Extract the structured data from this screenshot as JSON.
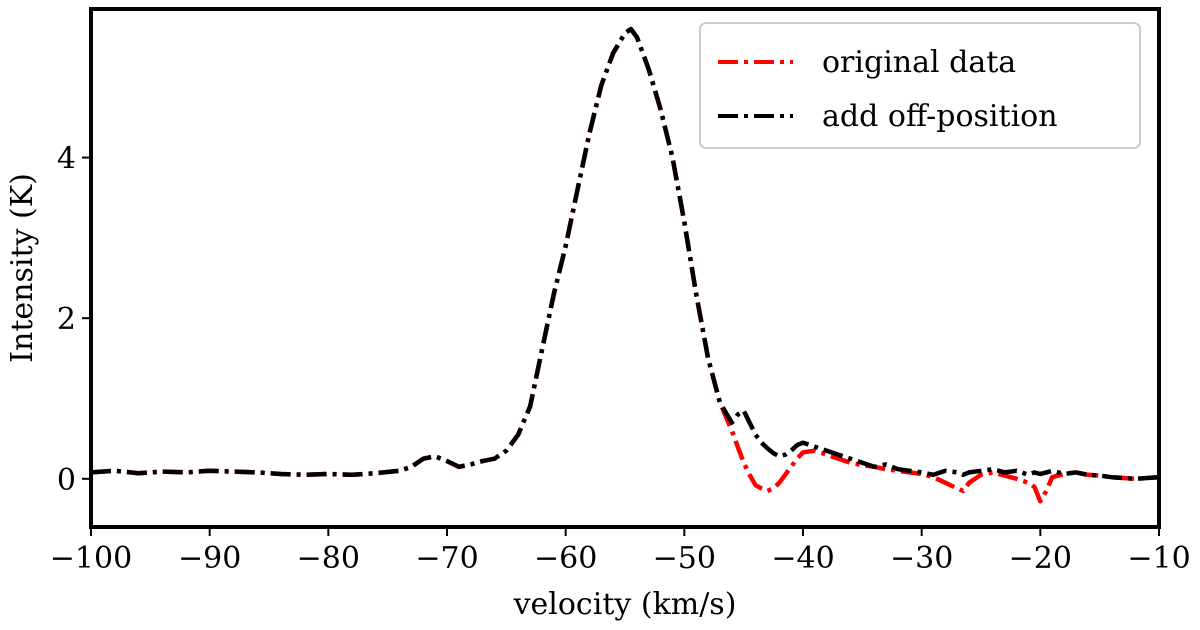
{
  "chart_data": {
    "type": "line",
    "xlabel": "velocity (km/s)",
    "ylabel": "Intensity (K)",
    "xlim": [
      -100,
      -10
    ],
    "ylim": [
      -0.6,
      5.85
    ],
    "xticks": [
      -100,
      -90,
      -80,
      -70,
      -60,
      -50,
      -40,
      -30,
      -20,
      -10
    ],
    "yticks": [
      0,
      2,
      4
    ],
    "grid": false,
    "legend": "top-right",
    "series": [
      {
        "name": "original data",
        "color": "#ff0000",
        "dash": "dash-dot",
        "x": [
          -100,
          -98,
          -96,
          -94,
          -92,
          -90,
          -88,
          -86,
          -84,
          -82,
          -80,
          -78,
          -76,
          -74,
          -73,
          -72,
          -71,
          -70,
          -69,
          -68,
          -67,
          -66,
          -65,
          -64,
          -63,
          -62,
          -61,
          -60,
          -59,
          -58,
          -57,
          -56,
          -55,
          -54.5,
          -54,
          -53,
          -52,
          -51,
          -50,
          -49,
          -48,
          -47,
          -46,
          -45.5,
          -45,
          -44.5,
          -44,
          -43.5,
          -43,
          -42.5,
          -42,
          -41.5,
          -41,
          -40.5,
          -40,
          -39,
          -38,
          -37,
          -36,
          -35,
          -34,
          -33,
          -32,
          -31,
          -30,
          -29,
          -28,
          -27,
          -26.5,
          -26,
          -25,
          -24,
          -23,
          -22,
          -21,
          -20.5,
          -20,
          -19.5,
          -19,
          -18,
          -17,
          -16,
          -15,
          -14,
          -13,
          -12,
          -11,
          -10
        ],
        "y": [
          0.08,
          0.1,
          0.07,
          0.09,
          0.08,
          0.1,
          0.09,
          0.08,
          0.06,
          0.05,
          0.06,
          0.05,
          0.07,
          0.1,
          0.15,
          0.25,
          0.28,
          0.22,
          0.15,
          0.18,
          0.22,
          0.25,
          0.35,
          0.55,
          0.9,
          1.6,
          2.3,
          2.9,
          3.6,
          4.3,
          4.9,
          5.3,
          5.55,
          5.6,
          5.5,
          5.1,
          4.6,
          4.0,
          3.2,
          2.3,
          1.5,
          0.95,
          0.6,
          0.4,
          0.2,
          0.05,
          -0.08,
          -0.12,
          -0.15,
          -0.12,
          -0.05,
          0.05,
          0.15,
          0.25,
          0.33,
          0.35,
          0.3,
          0.25,
          0.2,
          0.17,
          0.15,
          0.12,
          0.1,
          0.08,
          0.06,
          0.02,
          -0.05,
          -0.12,
          -0.15,
          -0.05,
          0.05,
          0.08,
          0.04,
          0.0,
          -0.05,
          -0.1,
          -0.28,
          -0.15,
          0.02,
          0.06,
          0.08,
          0.05,
          0.04,
          0.02,
          0.01,
          0.0,
          0.01,
          0.02
        ]
      },
      {
        "name": "add off-position",
        "color": "#000000",
        "dash": "dash-dot",
        "x": [
          -100,
          -98,
          -96,
          -94,
          -92,
          -90,
          -88,
          -86,
          -84,
          -82,
          -80,
          -78,
          -76,
          -74,
          -73,
          -72,
          -71,
          -70,
          -69,
          -68,
          -67,
          -66,
          -65,
          -64,
          -63,
          -62,
          -61,
          -60,
          -59,
          -58,
          -57,
          -56,
          -55,
          -54.5,
          -54,
          -53,
          -52,
          -51,
          -50,
          -49,
          -48,
          -47,
          -46,
          -45.5,
          -45,
          -44.5,
          -44,
          -43.5,
          -43,
          -42.5,
          -42,
          -41.5,
          -41,
          -40.5,
          -40,
          -39,
          -38,
          -37,
          -36,
          -35,
          -34,
          -33,
          -32,
          -31,
          -30,
          -29,
          -28,
          -27,
          -26.5,
          -26,
          -25,
          -24,
          -23,
          -22,
          -21,
          -20.5,
          -20,
          -19.5,
          -19,
          -18,
          -17,
          -16,
          -15,
          -14,
          -13,
          -12,
          -11,
          -10
        ],
        "y": [
          0.08,
          0.1,
          0.07,
          0.09,
          0.08,
          0.1,
          0.09,
          0.08,
          0.06,
          0.05,
          0.06,
          0.05,
          0.07,
          0.1,
          0.15,
          0.25,
          0.28,
          0.22,
          0.15,
          0.18,
          0.22,
          0.25,
          0.35,
          0.55,
          0.9,
          1.6,
          2.3,
          2.9,
          3.6,
          4.3,
          4.9,
          5.3,
          5.55,
          5.6,
          5.5,
          5.1,
          4.6,
          4.0,
          3.2,
          2.3,
          1.5,
          0.95,
          0.7,
          0.8,
          0.85,
          0.7,
          0.55,
          0.45,
          0.38,
          0.32,
          0.28,
          0.3,
          0.35,
          0.42,
          0.45,
          0.4,
          0.35,
          0.3,
          0.25,
          0.2,
          0.15,
          0.18,
          0.12,
          0.1,
          0.08,
          0.05,
          0.1,
          0.08,
          0.05,
          0.08,
          0.1,
          0.12,
          0.08,
          0.1,
          0.05,
          0.08,
          0.06,
          0.08,
          0.1,
          0.06,
          0.08,
          0.05,
          0.04,
          0.02,
          0.01,
          0.0,
          0.01,
          0.02
        ]
      }
    ]
  }
}
